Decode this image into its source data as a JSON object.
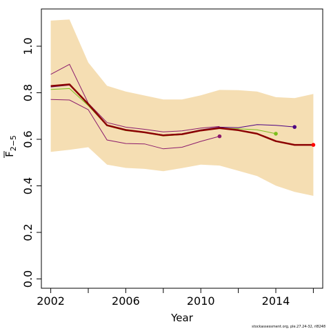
{
  "chart_data": {
    "type": "line",
    "xlabel": "Year",
    "ylabel_main": "F",
    "ylabel_sub": "2−5",
    "xlim": [
      2001.5,
      2016.5
    ],
    "ylim": [
      -0.04,
      1.16
    ],
    "xticks": [
      2002,
      2004,
      2006,
      2008,
      2010,
      2012,
      2014,
      2016
    ],
    "xtick_labels": [
      {
        "x": 2002,
        "label": "2002"
      },
      {
        "x": 2006,
        "label": "2006"
      },
      {
        "x": 2010,
        "label": "2010"
      },
      {
        "x": 2014,
        "label": "2014"
      }
    ],
    "yticks": [
      {
        "y": 0.0,
        "label": "0.0"
      },
      {
        "y": 0.2,
        "label": "0.2"
      },
      {
        "y": 0.4,
        "label": "0.4"
      },
      {
        "y": 0.6,
        "label": "0.6"
      },
      {
        "y": 0.8,
        "label": "0.8"
      },
      {
        "y": 1.0,
        "label": "1.0"
      }
    ],
    "band": {
      "color": "#f5deb3",
      "x": [
        2002,
        2003,
        2004,
        2005,
        2006,
        2007,
        2008,
        2009,
        2010,
        2011,
        2012,
        2013,
        2014,
        2015,
        2016
      ],
      "upper": [
        1.11,
        1.115,
        0.93,
        0.83,
        0.805,
        0.788,
        0.771,
        0.771,
        0.789,
        0.812,
        0.811,
        0.805,
        0.781,
        0.777,
        0.795
      ],
      "lower": [
        0.546,
        0.555,
        0.566,
        0.491,
        0.477,
        0.473,
        0.463,
        0.476,
        0.491,
        0.487,
        0.465,
        0.442,
        0.401,
        0.374,
        0.357
      ]
    },
    "band_edges": {
      "color": "#8b1a6b",
      "x": [
        2002,
        2003,
        2004,
        2005,
        2006,
        2007,
        2008,
        2009,
        2010,
        2011
      ],
      "upper": [
        0.879,
        0.922,
        0.755,
        0.672,
        0.652,
        0.643,
        0.632,
        0.636,
        0.648,
        0.655
      ],
      "lower": [
        0.771,
        0.769,
        0.727,
        0.597,
        0.582,
        0.58,
        0.559,
        0.566,
        0.591,
        0.613
      ]
    },
    "series": [
      {
        "color": "#8b0000",
        "width": 2.5,
        "x": [
          2002,
          2003,
          2004,
          2005,
          2006,
          2007,
          2008,
          2009,
          2010,
          2011,
          2012,
          2013,
          2014,
          2015,
          2016
        ],
        "values": [
          0.829,
          0.836,
          0.751,
          0.66,
          0.64,
          0.63,
          0.617,
          0.622,
          0.638,
          0.648,
          0.639,
          0.624,
          0.592,
          0.576,
          0.576
        ],
        "end_marker_color": "#ff0000"
      },
      {
        "color": "#7cbe1c",
        "width": 1,
        "x": [
          2002,
          2003,
          2004,
          2005,
          2006,
          2007,
          2008,
          2009,
          2010,
          2011,
          2012,
          2013,
          2014
        ],
        "values": [
          0.814,
          0.818,
          0.745,
          0.658,
          0.637,
          0.629,
          0.614,
          0.62,
          0.64,
          0.648,
          0.645,
          0.641,
          0.624
        ],
        "end_marker_color": "#7cbe1c"
      },
      {
        "color": "#4b0082",
        "width": 1,
        "x": [
          2002,
          2003,
          2004,
          2005,
          2006,
          2007,
          2008,
          2009,
          2010,
          2011,
          2012,
          2013,
          2014,
          2015
        ],
        "values": [
          0.825,
          0.833,
          0.75,
          0.661,
          0.641,
          0.631,
          0.619,
          0.624,
          0.641,
          0.652,
          0.65,
          0.663,
          0.66,
          0.653
        ],
        "end_marker_color": "#4b0082"
      }
    ],
    "extra_points": [
      {
        "x": 2011,
        "y": 0.613,
        "color": "#8b1a6b"
      }
    ]
  },
  "footnote": "stockassessment.org, ple.27.24-32, rl8248"
}
